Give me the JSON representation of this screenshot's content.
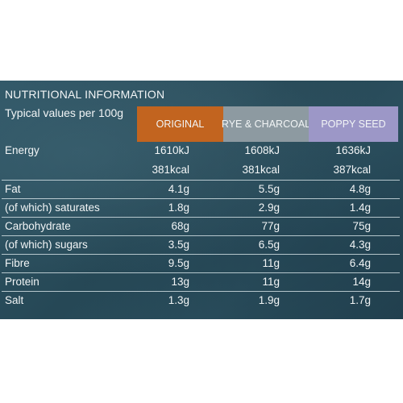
{
  "title": "NUTRITIONAL INFORMATION",
  "subtitle": "Typical values per 100g",
  "columns": [
    "ORIGINAL",
    "RYE & CHARCOAL",
    "POPPY SEED"
  ],
  "colors": {
    "panel_background": "#264856",
    "original": "#c2641f",
    "rye_charcoal": "#8d9aa1",
    "poppy_seed": "#9c97c7",
    "text": "#f2f5f6"
  },
  "rows": [
    {
      "label": "Energy",
      "values": [
        "1610kJ",
        "1608kJ",
        "1636kJ"
      ]
    },
    {
      "label": "",
      "values": [
        "381kcal",
        "381kcal",
        "387kcal"
      ]
    },
    {
      "label": "Fat",
      "values": [
        "4.1g",
        "5.5g",
        "4.8g"
      ]
    },
    {
      "label": " (of which) saturates",
      "values": [
        "1.8g",
        "2.9g",
        "1.4g"
      ]
    },
    {
      "label": "Carbohydrate",
      "values": [
        "68g",
        "77g",
        "75g"
      ]
    },
    {
      "label": " (of which) sugars",
      "values": [
        "3.5g",
        "6.5g",
        "4.3g"
      ]
    },
    {
      "label": "Fibre",
      "values": [
        "9.5g",
        "11g",
        "6.4g"
      ]
    },
    {
      "label": "Protein",
      "values": [
        "13g",
        "11g",
        "14g"
      ]
    },
    {
      "label": "Salt",
      "values": [
        "1.3g",
        "1.9g",
        "1.7g"
      ]
    }
  ]
}
